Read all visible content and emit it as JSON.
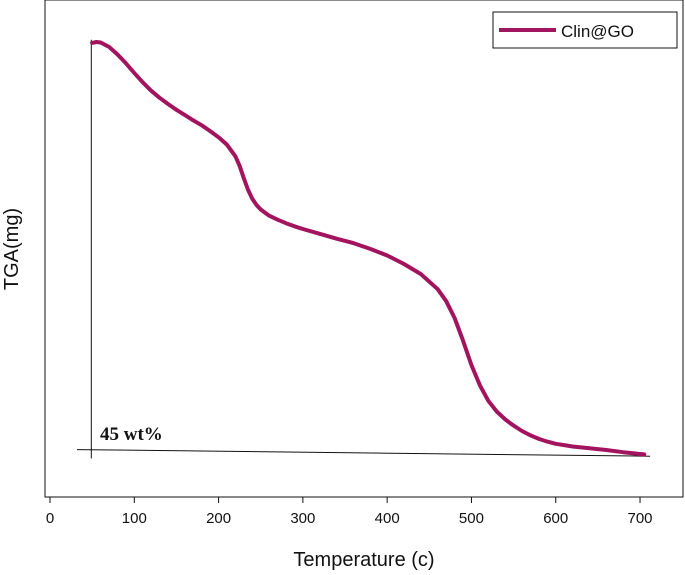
{
  "chart_data": {
    "type": "line",
    "title": "",
    "xlabel": "Temperature (c)",
    "ylabel": "TGA(mg)",
    "xlim": [
      0,
      750
    ],
    "x_ticks": [
      0,
      100,
      200,
      300,
      400,
      500,
      600,
      700
    ],
    "y_ticks_shown": false,
    "grid": false,
    "legend_position": "top-right",
    "series": [
      {
        "name": "Clin@GO",
        "color": "#a3145e",
        "x": [
          50,
          55,
          60,
          70,
          80,
          90,
          100,
          110,
          120,
          130,
          140,
          150,
          160,
          170,
          180,
          190,
          200,
          210,
          220,
          225,
          230,
          235,
          240,
          245,
          250,
          260,
          270,
          280,
          290,
          300,
          320,
          340,
          360,
          380,
          400,
          420,
          440,
          460,
          470,
          480,
          490,
          500,
          510,
          520,
          530,
          540,
          550,
          560,
          570,
          580,
          590,
          600,
          610,
          620,
          640,
          660,
          680,
          700,
          705
        ],
        "y": [
          92.8,
          93.0,
          92.9,
          91.9,
          90.2,
          88.2,
          86.0,
          83.9,
          82.0,
          80.4,
          79.0,
          77.7,
          76.5,
          75.3,
          74.2,
          72.9,
          71.5,
          69.8,
          67.2,
          65.0,
          62.2,
          59.6,
          57.6,
          56.2,
          55.2,
          53.8,
          52.9,
          52.1,
          51.4,
          50.8,
          49.7,
          48.6,
          47.6,
          46.3,
          44.8,
          42.9,
          40.6,
          37.2,
          34.5,
          30.7,
          25.6,
          20.1,
          15.5,
          12.0,
          9.6,
          7.8,
          6.4,
          5.2,
          4.2,
          3.4,
          2.8,
          2.3,
          2.0,
          1.7,
          1.3,
          0.9,
          0.4,
          0.0,
          -0.1
        ]
      }
    ],
    "annotations": [
      {
        "text": "45 wt%",
        "lines": [
          {
            "kind": "vertical",
            "x": 49,
            "y1": -1,
            "y2": 93.5
          },
          {
            "kind": "baseline",
            "x1": 32,
            "y1": 1.0,
            "x2": 712,
            "y2": -0.5
          }
        ]
      }
    ]
  }
}
